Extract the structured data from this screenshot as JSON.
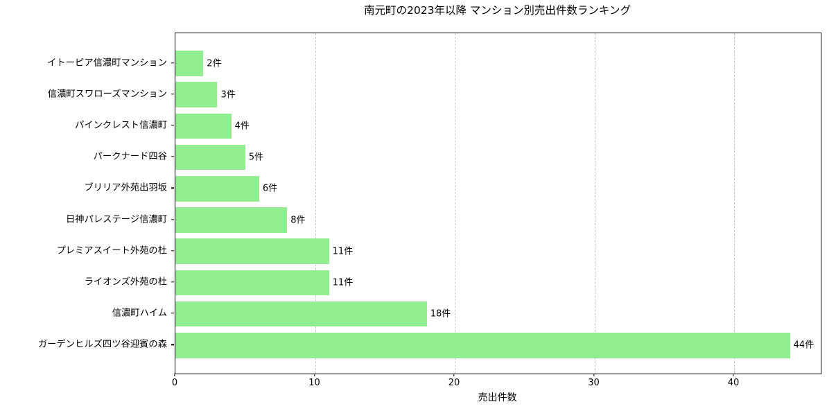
{
  "chart_data": {
    "type": "bar",
    "orientation": "horizontal",
    "title": "南元町の2023年以降 マンション別売出件数ランキング",
    "xlabel": "売出件数",
    "ylabel": "",
    "categories": [
      "イトーピア信濃町マンション",
      "信濃町スワローズマンション",
      "パインクレスト信濃町",
      "パークナード四谷",
      "ブリリア外苑出羽坂",
      "日神パレステージ信濃町",
      "プレミアスイート外苑の杜",
      "ライオンズ外苑の杜",
      "信濃町ハイム",
      "ガーデンヒルズ四ツ谷迎賓の森"
    ],
    "values": [
      2,
      3,
      4,
      5,
      6,
      8,
      11,
      11,
      18,
      44
    ],
    "value_labels": [
      "2件",
      "3件",
      "4件",
      "5件",
      "6件",
      "8件",
      "11件",
      "11件",
      "18件",
      "44件"
    ],
    "unit_suffix": "件",
    "xticks": [
      0,
      10,
      20,
      30,
      40
    ],
    "xtick_labels": [
      "0",
      "10",
      "20",
      "30",
      "40"
    ],
    "xlim": [
      0,
      46.2
    ],
    "category_order": "top-to-bottom ascending",
    "grid": {
      "axis": "x",
      "style": "dashed",
      "on": true
    },
    "legend": {
      "visible": false
    },
    "colors": {
      "bar": "#90EE90",
      "grid": "#c7c7c7",
      "spine": "#000000",
      "text": "#000000",
      "background": "#ffffff"
    }
  }
}
